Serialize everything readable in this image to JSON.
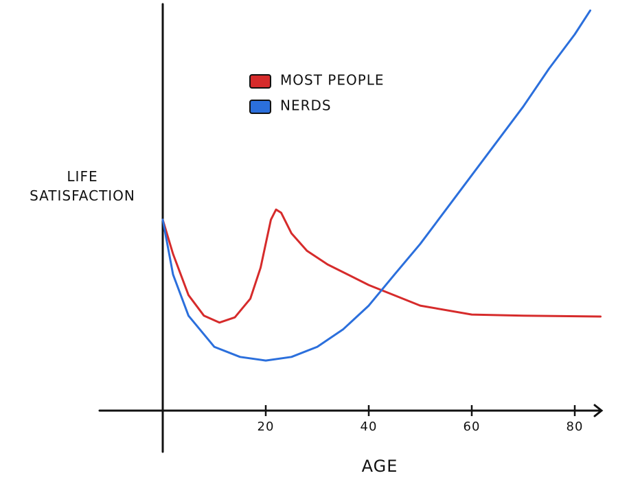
{
  "chart_data": {
    "type": "line",
    "xlabel": "AGE",
    "ylabel": "LIFE SATISFACTION",
    "xlim": [
      -12,
      85
    ],
    "ylim": [
      0,
      100
    ],
    "xticks": [
      20,
      40,
      60,
      80
    ],
    "legend": "upper left",
    "series": [
      {
        "name": "MOST PEOPLE",
        "color": "#d62b2b",
        "x": [
          0,
          2,
          5,
          8,
          11,
          14,
          17,
          19,
          21,
          22,
          23,
          25,
          28,
          32,
          40,
          50,
          60,
          70,
          85
        ],
        "values": [
          47.3,
          38.8,
          28.6,
          23.5,
          21.8,
          23.1,
          27.7,
          35.4,
          47.3,
          49.8,
          49,
          43.9,
          39.6,
          36.2,
          31.1,
          26,
          23.8,
          23.5,
          23.3
        ]
      },
      {
        "name": "NERDS",
        "color": "#2b6fdc",
        "x": [
          0,
          2,
          5,
          10,
          15,
          20,
          25,
          30,
          35,
          40,
          45,
          50,
          55,
          60,
          65,
          70,
          75,
          80,
          83
        ],
        "values": [
          47.3,
          33.7,
          23.5,
          15.8,
          13.3,
          12.4,
          13.3,
          15.8,
          20.1,
          26,
          33.7,
          41.3,
          49.8,
          58.3,
          66.8,
          75.3,
          84.7,
          93.2,
          99.1
        ]
      }
    ]
  }
}
